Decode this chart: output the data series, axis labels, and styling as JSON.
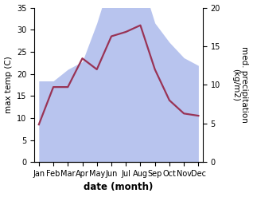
{
  "months": [
    "Jan",
    "Feb",
    "Mar",
    "Apr",
    "May",
    "Jun",
    "Jul",
    "Aug",
    "Sep",
    "Oct",
    "Nov",
    "Dec"
  ],
  "temperature": [
    8.5,
    17.0,
    17.0,
    23.5,
    21.0,
    28.5,
    29.5,
    31.0,
    21.0,
    14.0,
    11.0,
    10.5
  ],
  "precipitation": [
    10.5,
    10.5,
    12.0,
    13.0,
    18.0,
    24.0,
    22.5,
    24.0,
    18.0,
    15.5,
    13.5,
    12.5
  ],
  "temp_color": "#993355",
  "precip_color": "#b8c4ee",
  "title": "",
  "xlabel": "date (month)",
  "ylabel_left": "max temp (C)",
  "ylabel_right": "med. precipitation\n(kg/m2)",
  "ylim_left": [
    0,
    35
  ],
  "ylim_right": [
    0,
    20
  ],
  "background_color": "#ffffff",
  "temp_linewidth": 1.6,
  "xlabel_fontsize": 8.5,
  "ylabel_fontsize": 7.5,
  "tick_fontsize": 7.0
}
